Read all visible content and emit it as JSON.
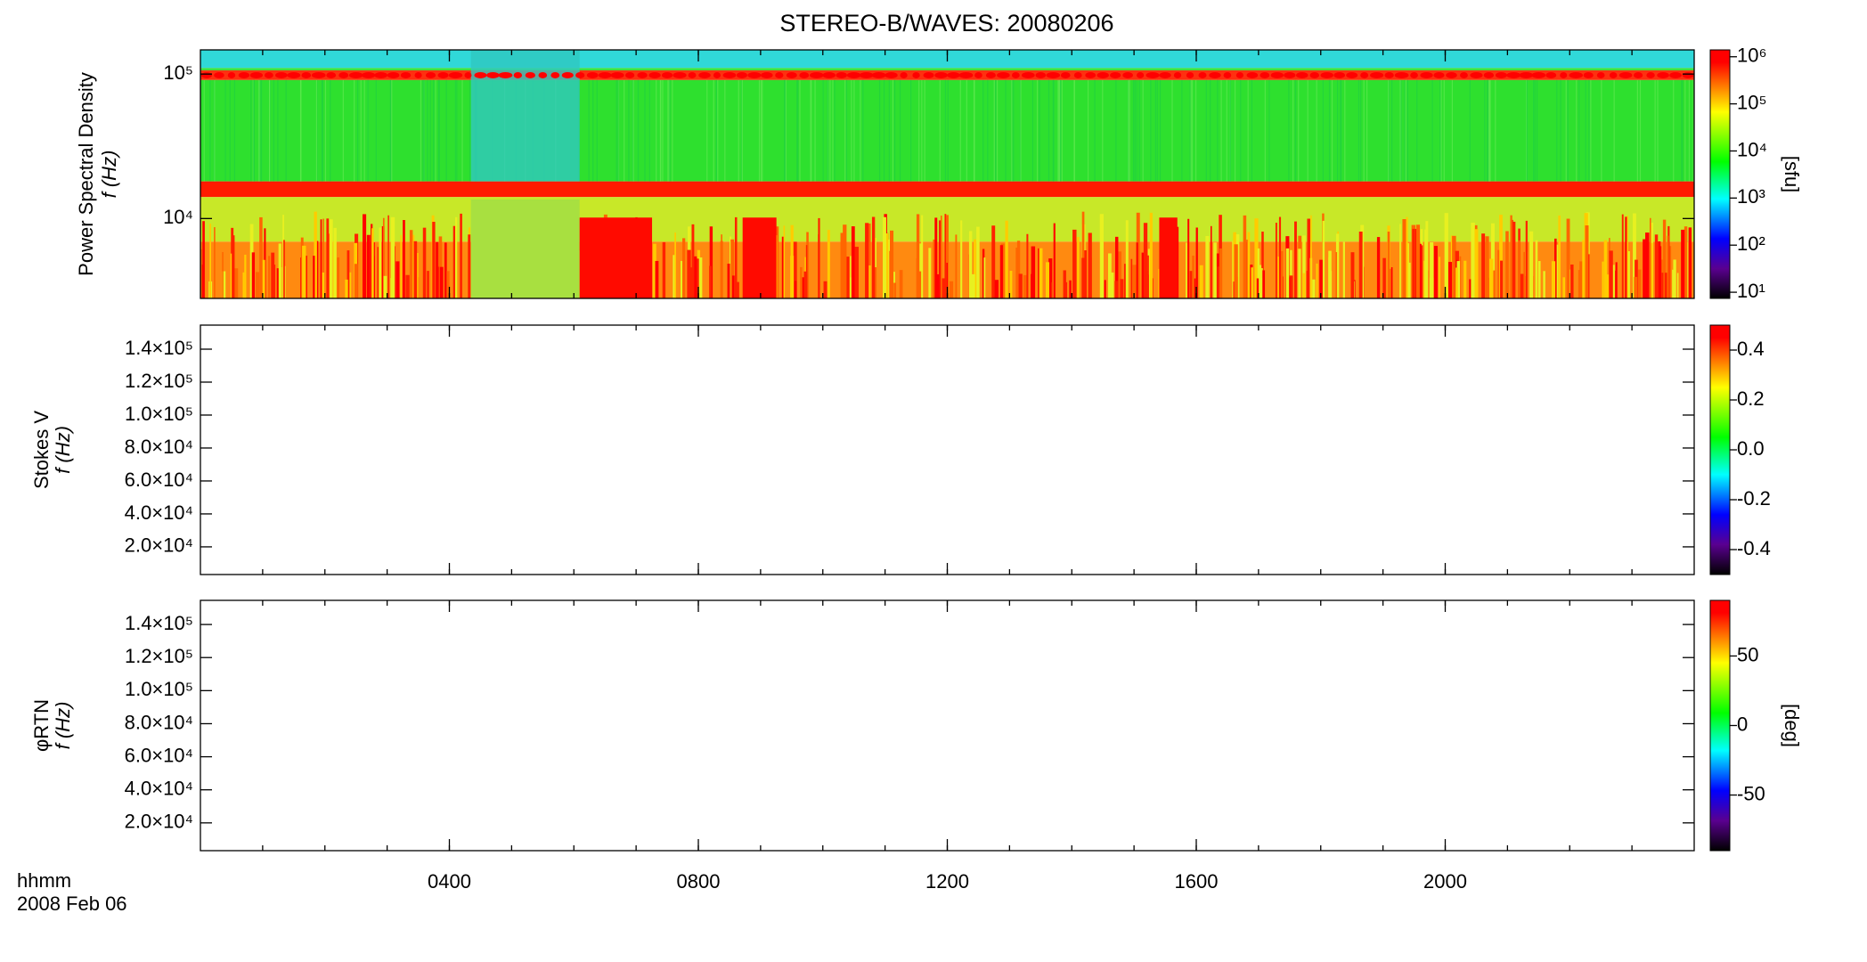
{
  "title": "STEREO-B/WAVES: 20080206",
  "x_label": "hhmm",
  "date": "2008 Feb 06",
  "xlim": [
    0,
    24
  ],
  "xticks": [
    {
      "value": 4,
      "label": "0400"
    },
    {
      "value": 8,
      "label": "0800"
    },
    {
      "value": 12,
      "label": "1200"
    },
    {
      "value": 16,
      "label": "1600"
    },
    {
      "value": 20,
      "label": "2000"
    }
  ],
  "chart_data": [
    {
      "type": "heatmap",
      "ylabel": "Power Spectral Density",
      "ylabel2": "f (Hz)",
      "log_scale": true,
      "ylim": [
        2800,
        147000
      ],
      "yticks": [
        {
          "value": 10000,
          "label": "10⁴"
        },
        {
          "value": 100000,
          "label": "10⁵"
        }
      ],
      "clim": [
        7.4,
        1400000
      ],
      "clog": true,
      "cticks": [
        {
          "value": 10,
          "label": "10¹"
        },
        {
          "value": 100,
          "label": "10²"
        },
        {
          "value": 1000,
          "label": "10³"
        },
        {
          "value": 10000,
          "label": "10⁴"
        },
        {
          "value": 100000,
          "label": "10⁵"
        },
        {
          "value": 1000000,
          "label": "10⁶"
        }
      ],
      "clabel": "[sfu]"
    },
    {
      "type": "heatmap",
      "ylabel": "Stokes V",
      "ylabel2": "f (Hz)",
      "ylim": [
        3200,
        154600
      ],
      "yticks": [
        {
          "value": 20000,
          "label": "2.0×10⁴"
        },
        {
          "value": 40000,
          "label": "4.0×10⁴"
        },
        {
          "value": 60000,
          "label": "6.0×10⁴"
        },
        {
          "value": 80000,
          "label": "8.0×10⁴"
        },
        {
          "value": 100000,
          "label": "1.0×10⁵"
        },
        {
          "value": 120000,
          "label": "1.2×10⁵"
        },
        {
          "value": 140000,
          "label": "1.4×10⁵"
        }
      ],
      "clim": [
        -0.5,
        0.5
      ],
      "cticks": [
        -0.4,
        -0.2,
        {
          "value": 0,
          "label": "0.0"
        },
        0.2,
        0.4
      ]
    },
    {
      "type": "heatmap",
      "ylabel": "φRTN",
      "ylabel2": "f (Hz)",
      "ylim": [
        3200,
        154600
      ],
      "yticks": [
        {
          "value": 20000,
          "label": "2.0×10⁴"
        },
        {
          "value": 40000,
          "label": "4.0×10⁴"
        },
        {
          "value": 60000,
          "label": "6.0×10⁴"
        },
        {
          "value": 80000,
          "label": "8.0×10⁴"
        },
        {
          "value": 100000,
          "label": "1.0×10⁵"
        },
        {
          "value": 120000,
          "label": "1.2×10⁵"
        },
        {
          "value": 140000,
          "label": "1.4×10⁵"
        }
      ],
      "clim": [
        -90,
        90
      ],
      "cticks": [
        -50,
        0,
        50
      ],
      "clabel": "[deg]"
    }
  ]
}
